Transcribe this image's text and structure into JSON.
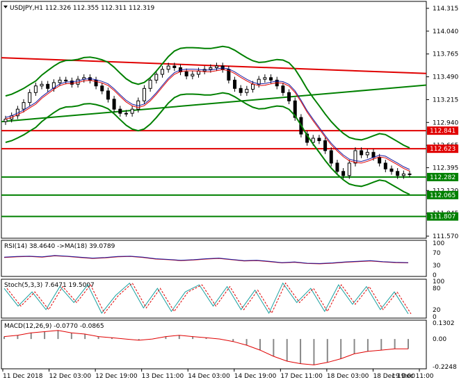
{
  "colors": {
    "candles": "#000000",
    "green_line": "#008000",
    "red_line": "#e00000",
    "blue_line": "#1a1aa0"
  },
  "chart_data": [
    {
      "type": "line",
      "title": "USDJPY,H1  112.326 112.355 112.311 112.319",
      "price_axis_ticks": [
        "114.315",
        "114.040",
        "113.765",
        "113.490",
        "113.215",
        "112.940",
        "112.665",
        "112.395",
        "112.120",
        "111.845",
        "111.570"
      ],
      "time_axis_labels": [
        "11 Dec 2018",
        "12 Dec 03:00",
        "12 Dec 19:00",
        "13 Dec 11:00",
        "14 Dec 03:00",
        "14 Dec 19:00",
        "17 Dec 11:00",
        "18 Dec 03:00",
        "18 Dec 19:00",
        "19 Dec 11:00"
      ],
      "ylim": [
        111.57,
        114.315
      ],
      "candles_close": [
        112.98,
        113.02,
        113.1,
        113.18,
        113.3,
        113.38,
        113.4,
        113.35,
        113.42,
        113.45,
        113.44,
        113.4,
        113.46,
        113.48,
        113.45,
        113.38,
        113.32,
        113.22,
        113.1,
        113.05,
        113.05,
        113.1,
        113.2,
        113.35,
        113.45,
        113.52,
        113.58,
        113.62,
        113.6,
        113.55,
        113.5,
        113.52,
        113.56,
        113.58,
        113.6,
        113.62,
        113.58,
        113.45,
        113.35,
        113.3,
        113.34,
        113.4,
        113.46,
        113.48,
        113.45,
        113.38,
        113.3,
        113.2,
        113.0,
        112.8,
        112.7,
        112.75,
        112.72,
        112.6,
        112.45,
        112.35,
        112.3,
        112.45,
        112.6,
        112.55,
        112.58,
        112.52,
        112.45,
        112.38,
        112.35,
        112.3,
        112.32,
        112.32
      ],
      "horizontal_levels": [
        {
          "value": 112.841,
          "label": "112.841",
          "color": "#e00000"
        },
        {
          "value": 112.623,
          "label": "112.623",
          "color": "#e00000"
        },
        {
          "value": 112.282,
          "label": "112.282",
          "color": "#008000"
        },
        {
          "value": 112.065,
          "label": "112.065",
          "color": "#008000"
        },
        {
          "value": 111.807,
          "label": "111.807",
          "color": "#008000"
        }
      ],
      "trendlines": [
        {
          "from": 113.72,
          "to": 113.53,
          "color": "#e00000"
        },
        {
          "from": 112.95,
          "to": 113.39,
          "color": "#008000"
        }
      ]
    },
    {
      "type": "line",
      "title": "RSI(14) 38.4640  ->MA(18) 39.0789",
      "ticks": [
        "100",
        "70",
        "30",
        "0"
      ],
      "ylim": [
        0,
        100
      ],
      "rsi": [
        55,
        57,
        58,
        56,
        60,
        58,
        55,
        52,
        54,
        57,
        58,
        55,
        50,
        48,
        45,
        47,
        50,
        52,
        48,
        44,
        45,
        42,
        38,
        40,
        36,
        35,
        37,
        40,
        42,
        44,
        41,
        39,
        38
      ]
    },
    {
      "type": "line",
      "title": "Stoch(5,3,3) 7.6471 19.5007",
      "ticks": [
        "100",
        "80",
        "20",
        "0"
      ],
      "ylim": [
        0,
        100
      ],
      "stoch": [
        80,
        30,
        70,
        20,
        85,
        40,
        90,
        10,
        60,
        95,
        25,
        80,
        15,
        70,
        90,
        30,
        85,
        20,
        75,
        10,
        95,
        40,
        80,
        15,
        90,
        35,
        85,
        20,
        70,
        8
      ]
    },
    {
      "type": "bar",
      "title": "MACD(12,26,9) -0.0770 -0.0865",
      "ticks": [
        "0.1302",
        "0.00",
        "-0.2248"
      ],
      "ylim": [
        -0.2248,
        0.1302
      ],
      "macd": [
        0.02,
        0.03,
        0.05,
        0.06,
        0.07,
        0.05,
        0.04,
        0.02,
        0.01,
        0.0,
        -0.01,
        0.0,
        0.02,
        0.03,
        0.02,
        0.01,
        0.0,
        -0.02,
        -0.05,
        -0.09,
        -0.14,
        -0.18,
        -0.2,
        -0.21,
        -0.19,
        -0.16,
        -0.12,
        -0.1,
        -0.09,
        -0.08,
        -0.08
      ]
    }
  ]
}
